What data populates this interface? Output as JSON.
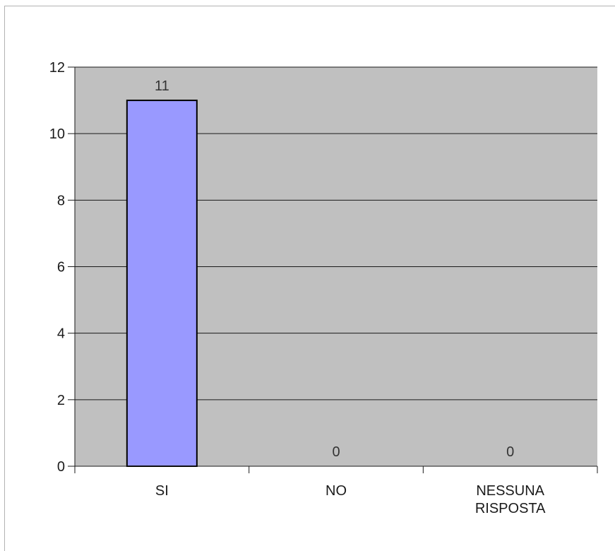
{
  "chart_data": {
    "type": "bar",
    "categories": [
      [
        "SI"
      ],
      [
        "NO"
      ],
      [
        "NESSUNA",
        "RISPOSTA"
      ]
    ],
    "values": [
      11,
      0,
      0
    ],
    "data_labels": [
      "11",
      "0",
      "0"
    ],
    "ylim": [
      0,
      12
    ],
    "yticks": [
      0,
      2,
      4,
      6,
      8,
      10,
      12
    ],
    "ytick_labels": [
      "0",
      "2",
      "4",
      "6",
      "8",
      "10",
      "12"
    ],
    "grid": true,
    "legend": "none",
    "colors": {
      "bar_fill": "#9999ff",
      "bar_stroke": "#000000",
      "plot_bg": "#c0c0c0",
      "grid": "#1a1a1a",
      "axis": "#1a1a1a"
    }
  }
}
